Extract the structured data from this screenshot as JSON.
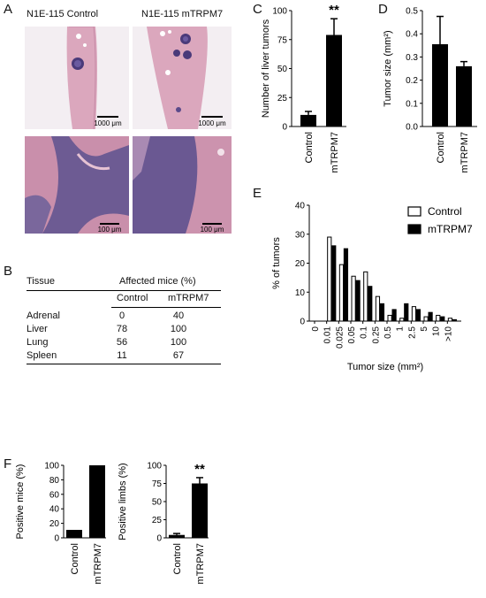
{
  "panels": {
    "A": "A",
    "B": "B",
    "C": "C",
    "D": "D",
    "E": "E",
    "F": "F"
  },
  "panel_a": {
    "titles": [
      "N1E-115 Control",
      "N1E-115 mTRPM7"
    ],
    "scale_bars": [
      "1000 μm",
      "1000 μm",
      "100 μm",
      "100 μm"
    ]
  },
  "panel_b": {
    "headers": {
      "tissue": "Tissue",
      "affected": "Affected mice (%)",
      "control": "Control",
      "mtrpm7": "mTRPM7"
    },
    "rows": [
      {
        "tissue": "Adrenal",
        "control": "0",
        "mtrpm7": "40"
      },
      {
        "tissue": "Liver",
        "control": "78",
        "mtrpm7": "100"
      },
      {
        "tissue": "Lung",
        "control": "56",
        "mtrpm7": "100"
      },
      {
        "tissue": "Spleen",
        "control": "11",
        "mtrpm7": "67"
      }
    ]
  },
  "chart_data": [
    {
      "panel": "C",
      "type": "bar",
      "categories": [
        "Control",
        "mTRPM7"
      ],
      "values": [
        10,
        79
      ],
      "errors": [
        3,
        14
      ],
      "ylabel": "Number of liver tumors",
      "ylim": [
        0,
        100
      ],
      "yticks": [
        "0",
        "25",
        "50",
        "75",
        "100"
      ],
      "annotation": "**"
    },
    {
      "panel": "D",
      "type": "bar",
      "categories": [
        "Control",
        "mTRPM7"
      ],
      "values": [
        0.355,
        0.26
      ],
      "errors": [
        0.12,
        0.02
      ],
      "ylabel": "Tumor size (mm²)",
      "ylim": [
        0,
        0.5
      ],
      "yticks": [
        "0.0",
        "0.1",
        "0.2",
        "0.3",
        "0.4",
        "0.5"
      ]
    },
    {
      "panel": "E",
      "type": "bar",
      "categories": [
        "0",
        "0.01",
        "0.025",
        "0.05",
        "0.1",
        "0.25",
        "0.5",
        "1",
        "2.5",
        "5",
        "10",
        ">10"
      ],
      "series": [
        {
          "name": "Control",
          "values": [
            0,
            29,
            19.5,
            15.5,
            17,
            8.5,
            2,
            1,
            5,
            1.5,
            2,
            1
          ]
        },
        {
          "name": "mTRPM7",
          "values": [
            0,
            26,
            25,
            14,
            12,
            6,
            4,
            6,
            4,
            3,
            1.5,
            0.5
          ]
        }
      ],
      "xlabel": "Tumor size (mm²)",
      "ylabel": "% of tumors",
      "ylim": [
        0,
        40
      ],
      "yticks": [
        "0",
        "10",
        "20",
        "30",
        "40"
      ],
      "legend": "top-right"
    },
    {
      "panel": "F-left",
      "type": "bar",
      "categories": [
        "Control",
        "mTRPM7"
      ],
      "values": [
        11,
        100
      ],
      "ylabel": "Positive mice (%)",
      "ylim": [
        0,
        100
      ],
      "yticks": [
        "0",
        "20",
        "40",
        "60",
        "80",
        "100"
      ]
    },
    {
      "panel": "F-right",
      "type": "bar",
      "categories": [
        "Control",
        "mTRPM7"
      ],
      "values": [
        4,
        75
      ],
      "errors": [
        2,
        8
      ],
      "ylabel": "Positive limbs (%)",
      "ylim": [
        0,
        100
      ],
      "yticks": [
        "0",
        "25",
        "50",
        "75",
        "100"
      ],
      "annotation": "**"
    }
  ]
}
